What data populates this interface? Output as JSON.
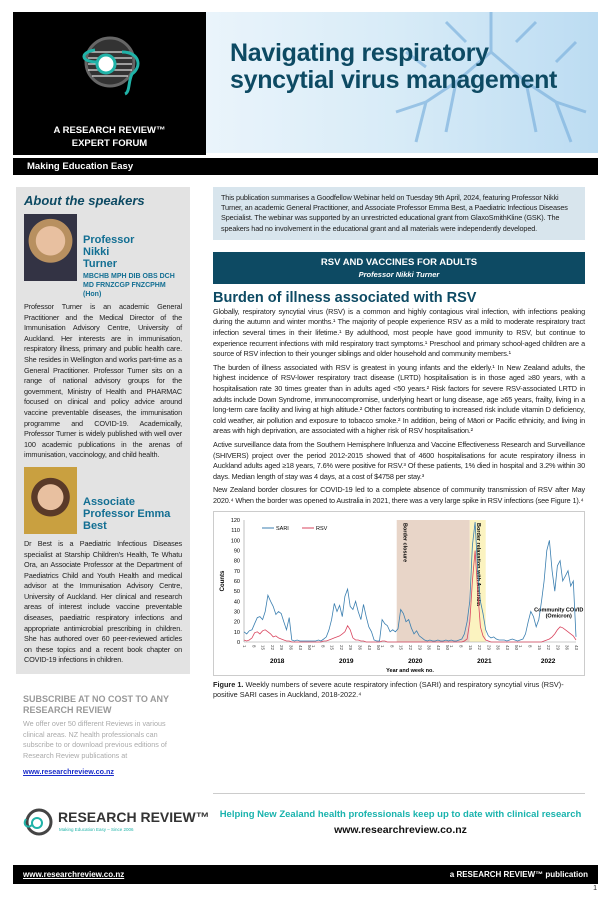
{
  "header": {
    "brand_line1": "A RESEARCH REVIEW™",
    "brand_line2": "EXPERT FORUM",
    "title": "Navigating respiratory syncytial virus management",
    "tagline": "Making Education Easy"
  },
  "sidebar": {
    "heading": "About the speakers",
    "speakers": [
      {
        "name": "Professor Nikki Turner",
        "quals": "MBCHB MPH DIB OBS DCH MD FRNZCGP FNZCPHM (Hon)",
        "bio": "Professor Turner is an academic General Practitioner and the Medical Director of the Immunisation Advisory Centre, University of Auckland. Her interests are in immunisation, respiratory illness, primary and public health care. She resides in Wellington and works part-time as a General Practitioner. Professor Turner sits on a range of national advisory groups for the government, Ministry of Health and PHARMAC focused on clinical and policy advice around vaccine preventable diseases, the immunisation programme and COVID-19. Academically, Professor Turner is widely published with well over 100 academic publications in the arenas of immunisation, vaccinology, and child health."
      },
      {
        "name": "Associate Professor Emma Best",
        "quals": "",
        "bio": "Dr Best is a Paediatric Infectious Diseases specialist at Starship Children's Health, Te Whatu Ora, an Associate Professor at the Department of Paediatrics Child and Youth Health and medical advisor at the Immunisation Advisory Centre, University of Auckland. Her clinical and research areas of interest include vaccine preventable diseases, paediatric respiratory infections and appropriate antimicrobial prescribing in children. She has authored over 60 peer-reviewed articles on these topics and a recent book chapter on COVID-19 infections in children."
      }
    ]
  },
  "subscribe": {
    "heading": "SUBSCRIBE AT NO COST TO ANY RESEARCH REVIEW",
    "text": "We offer over 50 different Reviews in various clinical areas. NZ health professionals can subscribe to or download previous editions of Research Review publications at",
    "link": "www.researchreview.co.nz"
  },
  "intro": "This publication summarises a Goodfellow Webinar held on Tuesday 9th April, 2024, featuring Professor Nikki Turner, an academic General Practitioner, and Associate Professor Emma Best, a Paediatric Infectious Diseases Specialist. The webinar was supported by an unrestricted educational grant from GlaxoSmithKline (GSK). The speakers had no involvement in the educational grant and all materials were independently developed.",
  "section": {
    "title": "RSV AND VACCINES FOR ADULTS",
    "speaker": "Professor Nikki Turner"
  },
  "article": {
    "heading": "Burden of illness associated with RSV",
    "paragraphs": [
      "Globally, respiratory syncytial virus (RSV) is a common and highly contagious viral infection, with infections peaking during the autumn and winter months.¹ The majority of people experience RSV as a mild to moderate respiratory tract infection several times in their lifetime.¹ By adulthood, most people have good immunity to RSV, but continue to experience recurrent infections with mild respiratory tract symptoms.¹ Preschool and primary school-aged children are a source of RSV infection to their younger siblings and older household and community members.¹",
      "The burden of illness associated with RSV is greatest in young infants and the elderly.¹ In New Zealand adults, the highest incidence of RSV-lower respiratory tract disease (LRTD) hospitalisation is in those aged ≥80 years, with a hospitalisation rate 30 times greater than in adults aged <50 years.² Risk factors for severe RSV-associated LRTD in adults include Down Syndrome, immunocompromise, underlying heart or lung disease, age ≥65 years, frailty, living in a long-term care facility and living at high altitude.² Other factors contributing to increased risk include vitamin D deficiency, cold weather, air pollution and exposure to tobacco smoke.² In addition, being of Māori or Pacific ethnicity, and living in areas with high deprivation, are associated with a higher risk of RSV hospitalisation.²",
      "Active surveillance data from the Southern Hemisphere Influenza and Vaccine Effectiveness Research and Surveillance (SHIVERS) project over the period 2012-2015 showed that of 4600 hospitalisations for acute respiratory illness in Auckland adults aged ≥18 years, 7.6% were positive for RSV.³ Of these patients, 1% died in hospital and 3.2% within 30 days. Median length of stay was 4 days, at a cost of $4758 per stay.³",
      "New Zealand border closures for COVID-19 led to a complete absence of community transmission of RSV after May 2020.⁴ When the border was opened to Australia in 2021, there was a very large spike in RSV infections (see Figure 1).⁴"
    ]
  },
  "figure": {
    "caption_label": "Figure 1.",
    "caption": "Weekly numbers of severe acute respiratory infection (SARI) and respiratory syncytial virus (RSV)-positive SARI cases in Auckland, 2018-2022.⁴"
  },
  "chart_data": {
    "type": "line",
    "ylabel": "Counts",
    "xlabel": "Year and week no.",
    "ylim": [
      0,
      120
    ],
    "yticks": [
      0,
      10,
      20,
      30,
      40,
      50,
      60,
      70,
      80,
      90,
      100,
      110,
      120
    ],
    "years": [
      "2018",
      "2019",
      "2020",
      "2021",
      "2022"
    ],
    "week_ticks": [
      "1",
      "8",
      "15",
      "22",
      "29",
      "36",
      "43",
      "50"
    ],
    "x_weeks": "odd weeks 1-51 per year; 2022 to week 43",
    "series": [
      {
        "name": "SARI",
        "color": "#3b7fb0",
        "values": [
          10,
          8,
          11,
          12,
          18,
          24,
          25,
          22,
          30,
          46,
          40,
          35,
          27,
          30,
          28,
          20,
          12,
          24,
          2,
          1,
          2,
          1,
          1,
          1,
          1,
          1,
          1,
          1,
          2,
          1,
          3,
          5,
          12,
          22,
          38,
          30,
          36,
          25,
          45,
          52,
          35,
          32,
          40,
          30,
          22,
          37,
          25,
          15,
          10,
          2,
          1,
          1,
          22,
          18,
          16,
          10,
          12,
          10,
          13,
          32,
          28,
          20,
          22,
          14,
          8,
          11,
          6,
          4,
          2,
          1,
          2,
          1,
          1,
          2,
          1,
          1,
          2,
          1,
          2,
          1,
          1,
          2,
          3,
          8,
          20,
          40,
          95,
          118,
          70,
          40,
          28,
          12,
          6,
          4,
          5,
          3,
          2,
          2,
          2,
          1,
          2,
          3,
          2,
          1,
          2,
          3,
          8,
          20,
          30,
          25,
          15,
          22,
          40,
          60,
          90,
          100,
          70,
          50,
          75,
          80,
          60,
          65,
          70,
          55,
          60,
          5
        ]
      },
      {
        "name": "RSV",
        "color": "#d9455f",
        "values": [
          2,
          1,
          2,
          4,
          9,
          10,
          8,
          11,
          12,
          10,
          8,
          5,
          6,
          4,
          3,
          2,
          1,
          1,
          0,
          0,
          0,
          0,
          0,
          0,
          0,
          0,
          0,
          0,
          0,
          0,
          1,
          1,
          2,
          3,
          4,
          5,
          6,
          8,
          10,
          16,
          12,
          4,
          2,
          2,
          1,
          1,
          0,
          0,
          0,
          0,
          0,
          0,
          1,
          1,
          0,
          0,
          0,
          0,
          0,
          0,
          0,
          0,
          0,
          0,
          0,
          0,
          0,
          0,
          0,
          0,
          0,
          0,
          0,
          0,
          0,
          0,
          0,
          0,
          0,
          0,
          0,
          0,
          0,
          1,
          3,
          20,
          60,
          90,
          50,
          15,
          6,
          2,
          1,
          0,
          0,
          0,
          0,
          0,
          0,
          0,
          0,
          0,
          0,
          0,
          0,
          0,
          0,
          0,
          0,
          0,
          0,
          0,
          0,
          1,
          2,
          3,
          5,
          8,
          12,
          15,
          14,
          12,
          10,
          8,
          6,
          2
        ]
      }
    ],
    "annotations": [
      {
        "text": "Border closure",
        "from": "2020 wk 12",
        "to": "2021 wk 15",
        "color": "#e8d5c8"
      },
      {
        "text": "Border relaxation with Australia",
        "from": "2021 wk 15",
        "to": "2021 wk 27",
        "color": "#fbf3c0"
      },
      {
        "text": "Community COVID (Omicron)"
      }
    ],
    "legend": "top-left"
  },
  "footer": {
    "logo": "RESEARCH REVIEW™",
    "logo_sub": "Making Education Easy – Since 2006",
    "help": "Helping New Zealand health professionals keep up to date with clinical research",
    "url": "www.researchreview.co.nz",
    "bar_left": "www.researchreview.co.nz",
    "bar_right": "a RESEARCH REVIEW™ publication",
    "page": "1"
  }
}
